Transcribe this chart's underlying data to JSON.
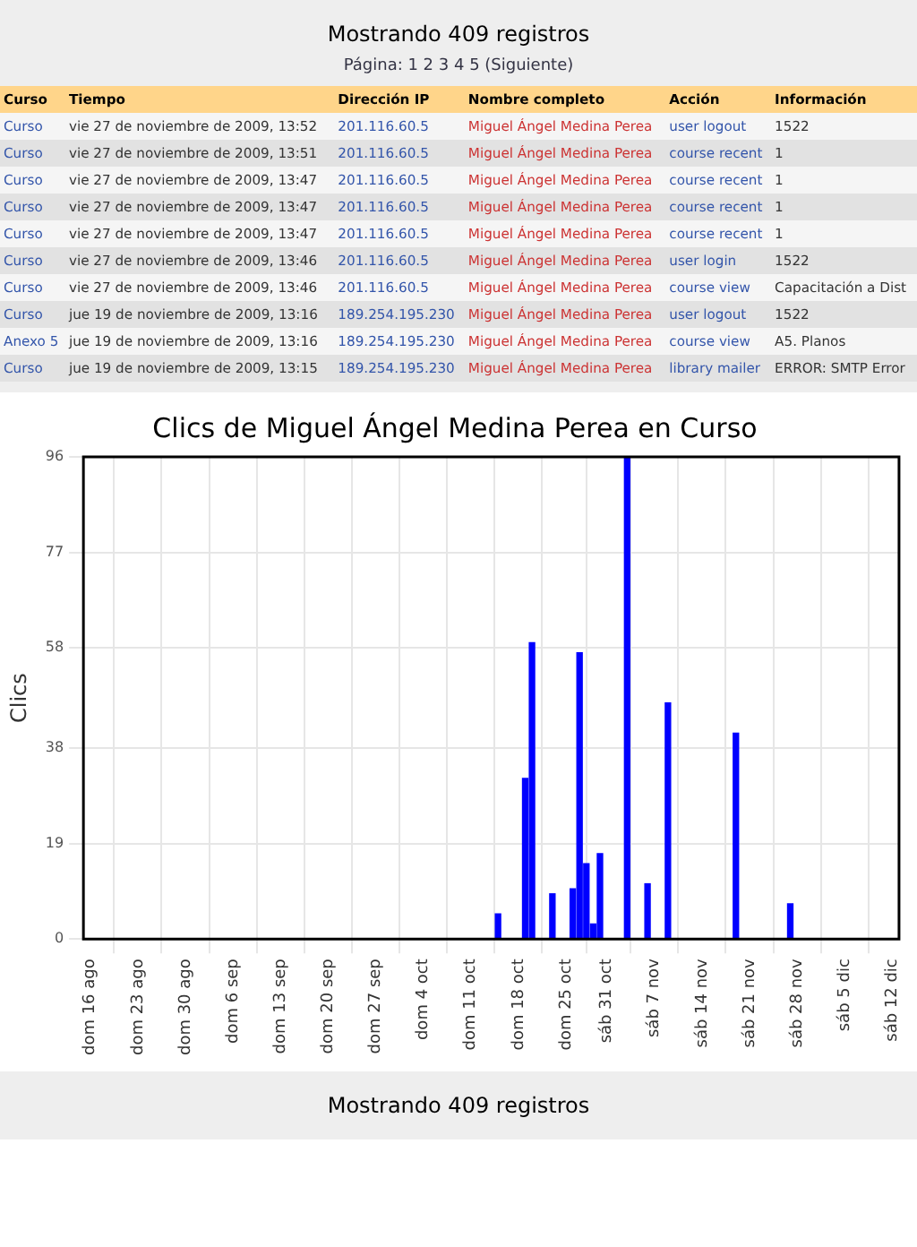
{
  "chart_data": [
    {
      "type": "other",
      "title": "Mostrando 409 registros",
      "subtitle": "Página: 1 2 3 4 5 (Siguiente)",
      "categories": [
        "Curso",
        "Tiempo",
        "Dirección IP",
        "Nombre completo",
        "Acción",
        "Información"
      ],
      "annotations": [
        "Curso",
        "vie 27 de noviembre de 2009, 13:52",
        "201.116.60.5",
        "Miguel Ángel Medina Perea",
        "user logout",
        "1522",
        "Curso",
        "vie 27 de noviembre de 2009, 13:51",
        "201.116.60.5",
        "Miguel Ángel Medina Perea",
        "course recent",
        "1",
        "Curso",
        "vie 27 de noviembre de 2009, 13:47",
        "201.116.60.5",
        "Miguel Ángel Medina Perea",
        "course recent",
        "1",
        "Curso",
        "vie 27 de noviembre de 2009, 13:47",
        "201.116.60.5",
        "Miguel Ángel Medina Perea",
        "course recent",
        "1",
        "Curso",
        "vie 27 de noviembre de 2009, 13:47",
        "201.116.60.5",
        "Miguel Ángel Medina Perea",
        "course recent",
        "1",
        "Curso",
        "vie 27 de noviembre de 2009, 13:46",
        "201.116.60.5",
        "Miguel Ángel Medina Perea",
        "user login",
        "1522",
        "Curso",
        "vie 27 de noviembre de 2009, 13:46",
        "201.116.60.5",
        "Miguel Ángel Medina Perea",
        "course view",
        "Capacitación a Dist",
        "Curso",
        "jue 19 de noviembre de 2009, 13:16",
        "189.254.195.230",
        "Miguel Ángel Medina Perea",
        "user logout",
        "1522",
        "Anexo 5",
        "jue 19 de noviembre de 2009, 13:16",
        "189.254.195.230",
        "Miguel Ángel Medina Perea",
        "course view",
        "A5. Planos",
        "Curso",
        "jue 19 de noviembre de 2009, 13:15",
        "189.254.195.230",
        "Miguel Ángel Medina Perea",
        "library mailer",
        "ERROR: SMTP Error"
      ]
    },
    {
      "type": "bar",
      "title": "Clics de Miguel Ángel Medina Perea en Curso",
      "ylabel": "Clics",
      "color": "#0000ff",
      "x": [
        "2009-10-15",
        "2009-10-19",
        "2009-10-20",
        "2009-10-23",
        "2009-10-26",
        "2009-10-27",
        "2009-10-28",
        "2009-10-29",
        "2009-10-30",
        "2009-11-03",
        "2009-11-06",
        "2009-11-09",
        "2009-11-19",
        "2009-11-27"
      ],
      "values": [
        5,
        32,
        59,
        9,
        10,
        57,
        15,
        3,
        17,
        96,
        11,
        47,
        41,
        7
      ],
      "xlim": [
        "2009-08-15",
        "2009-12-13"
      ],
      "xticks": [
        {
          "value": "2009-08-16",
          "label": "dom 16 ago"
        },
        {
          "value": "2009-08-23",
          "label": "dom 23 ago"
        },
        {
          "value": "2009-08-30",
          "label": "dom 30 ago"
        },
        {
          "value": "2009-09-06",
          "label": "dom 6 sep"
        },
        {
          "value": "2009-09-13",
          "label": "dom 13 sep"
        },
        {
          "value": "2009-09-20",
          "label": "dom 20 sep"
        },
        {
          "value": "2009-09-27",
          "label": "dom 27 sep"
        },
        {
          "value": "2009-10-04",
          "label": "dom 4 oct"
        },
        {
          "value": "2009-10-11",
          "label": "dom 11 oct"
        },
        {
          "value": "2009-10-18",
          "label": "dom 18 oct"
        },
        {
          "value": "2009-10-25",
          "label": "dom 25 oct"
        },
        {
          "value": "2009-10-31",
          "label": "sáb 31 oct"
        },
        {
          "value": "2009-11-07",
          "label": "sáb 7 nov"
        },
        {
          "value": "2009-11-14",
          "label": "sáb 14 nov"
        },
        {
          "value": "2009-11-21",
          "label": "sáb 21 nov"
        },
        {
          "value": "2009-11-28",
          "label": "sáb 28 nov"
        },
        {
          "value": "2009-12-05",
          "label": "sáb 5 dic"
        },
        {
          "value": "2009-12-12",
          "label": "sáb 12 dic"
        }
      ],
      "ylim": [
        0,
        96
      ],
      "yticks": [
        0,
        19,
        38,
        58,
        77,
        96
      ],
      "grid": true
    },
    {
      "type": "other",
      "title": "Mostrando 409 registros"
    }
  ]
}
